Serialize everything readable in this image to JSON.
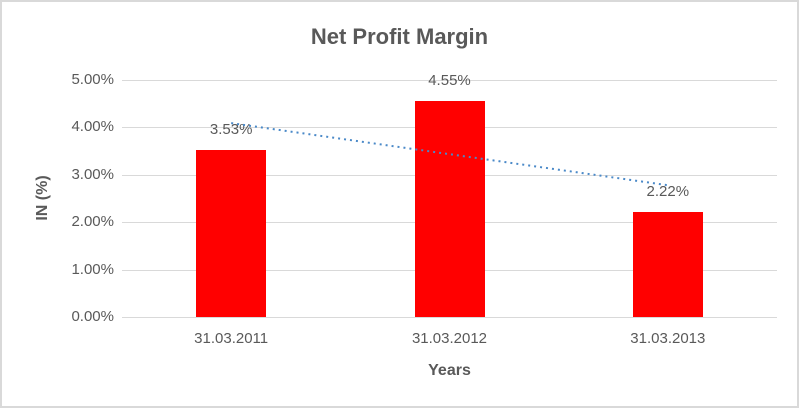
{
  "chart_data": {
    "type": "bar",
    "title": "Net Profit Margin",
    "xlabel": "Years",
    "ylabel": "IN (%)",
    "categories": [
      "31.03.2011",
      "31.03.2012",
      "31.03.2013"
    ],
    "values": [
      3.53,
      4.55,
      2.22
    ],
    "data_labels": [
      "3.53%",
      "4.55%",
      "2.22%"
    ],
    "ylim": [
      0,
      5
    ],
    "ytick_labels_bottom_to_top": [
      "0.00%",
      "1.00%",
      "2.00%",
      "3.00%",
      "4.00%",
      "5.00%"
    ],
    "grid": true,
    "legend": "none",
    "bar_color": "#ff0000",
    "trendline": {
      "type": "linear",
      "style": "dotted",
      "color": "#4a89c8",
      "endpoints_pct": [
        4.09,
        2.78
      ]
    },
    "text_color": "#595959",
    "gridline_color": "#d9d9d9",
    "chart_border_color": "#d9d9d9",
    "background_color": "#ffffff"
  }
}
